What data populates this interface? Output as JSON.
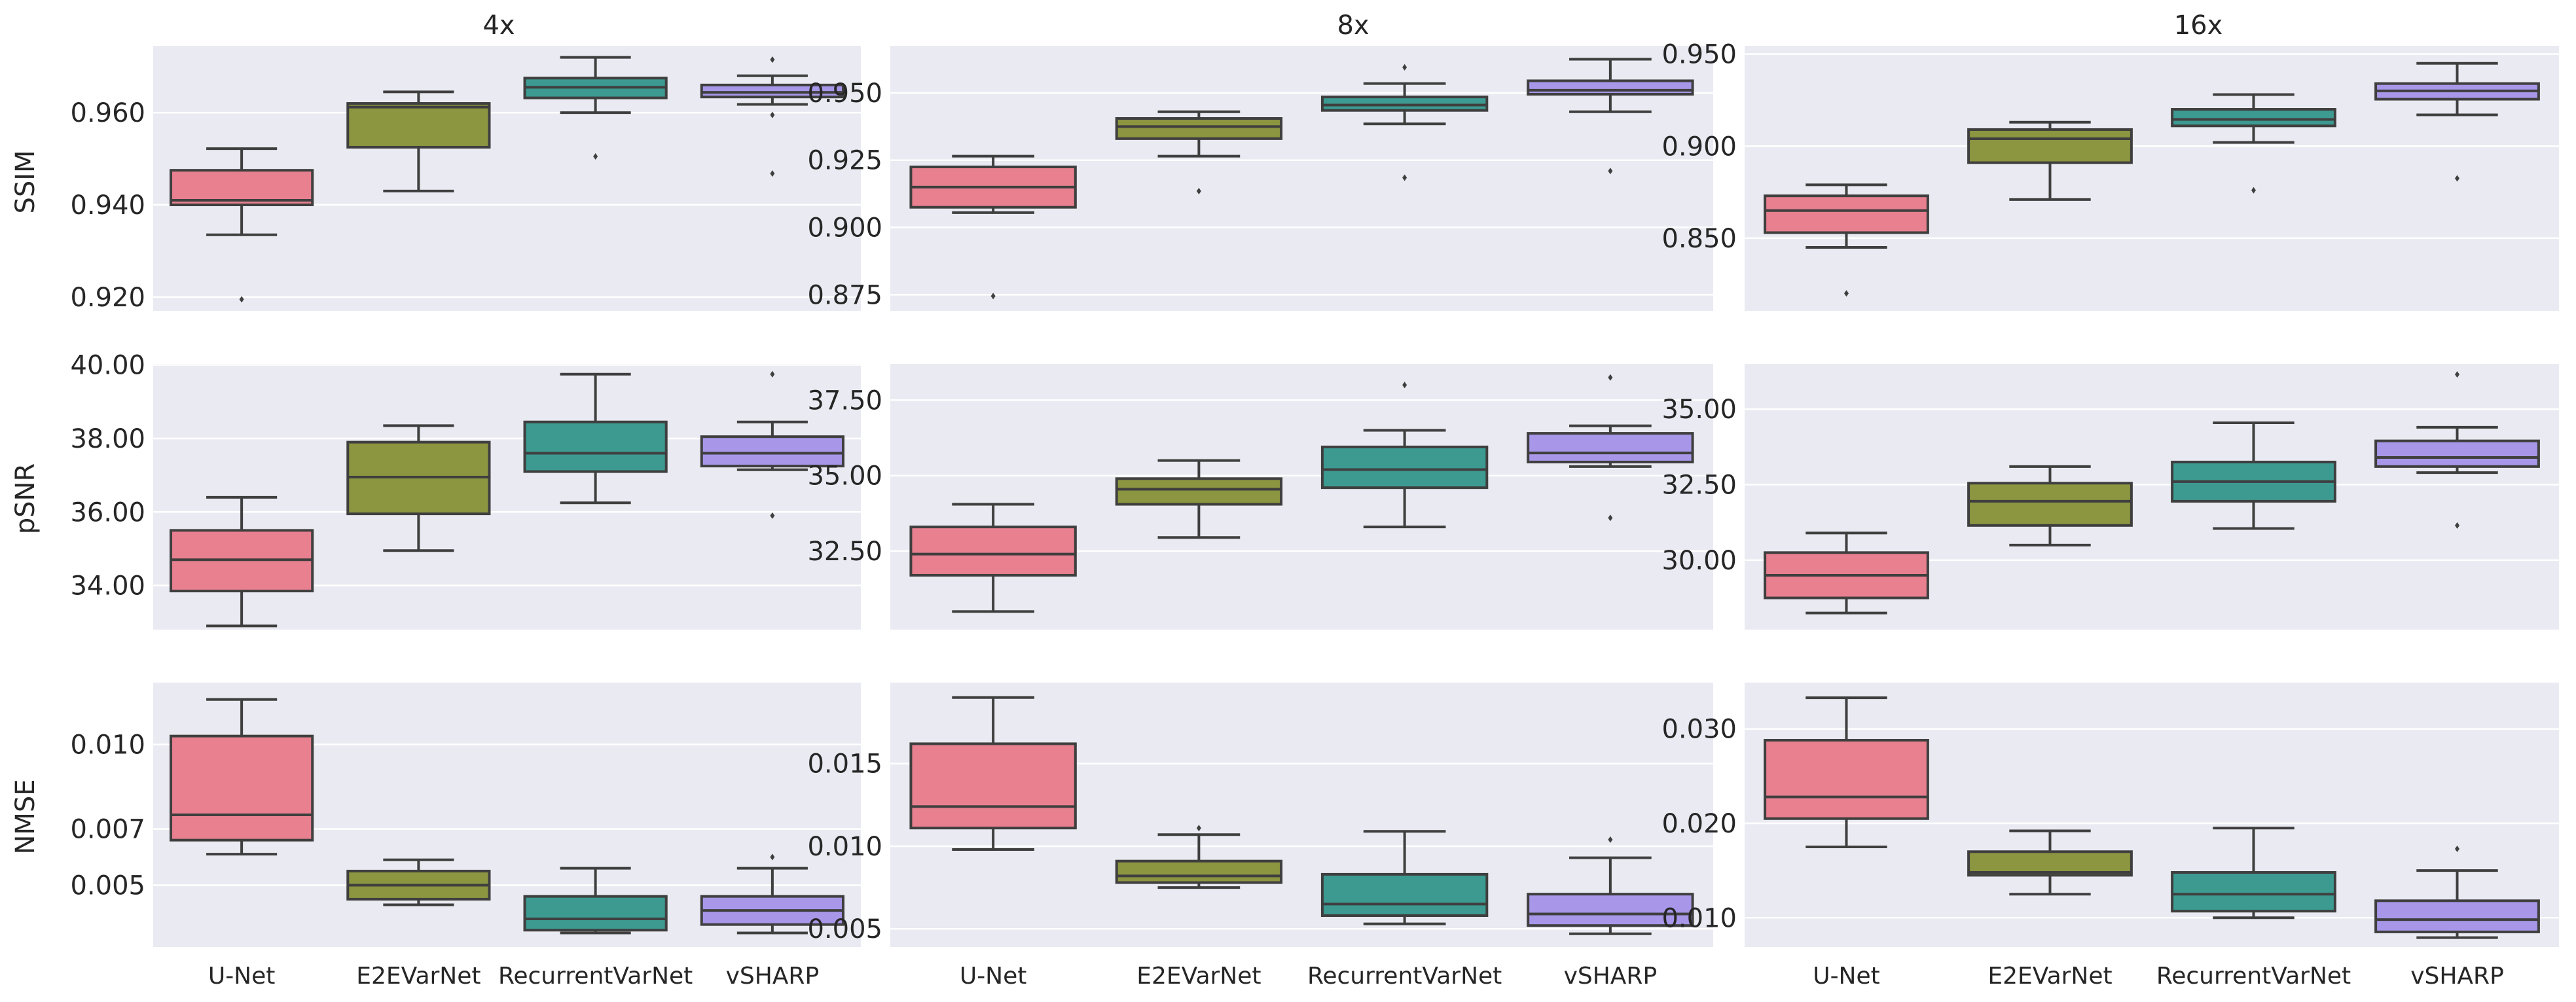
{
  "chart_data": {
    "type": "box",
    "categories": [
      "U-Net",
      "E2EVarNet",
      "RecurrentVarNet",
      "vSHARP"
    ],
    "colors": [
      "#E88090",
      "#8C9540",
      "#3C9A91",
      "#A897E8"
    ],
    "columns": [
      "4x",
      "8x",
      "16x"
    ],
    "rows": [
      "SSIM",
      "pSNR",
      "NMSE"
    ],
    "panels": [
      {
        "row": "SSIM",
        "column": "4x",
        "ylim": [
          0.917,
          0.9745
        ],
        "decimals": 3,
        "ticks": [
          0.92,
          0.94,
          0.96
        ],
        "boxes": [
          {
            "whislo": 0.9335,
            "q1": 0.94,
            "med": 0.941,
            "q3": 0.9475,
            "whishi": 0.9522,
            "fliers": [
              0.9195
            ]
          },
          {
            "whislo": 0.943,
            "q1": 0.9525,
            "med": 0.9612,
            "q3": 0.962,
            "whishi": 0.9645,
            "fliers": []
          },
          {
            "whislo": 0.96,
            "q1": 0.9632,
            "med": 0.9655,
            "q3": 0.9675,
            "whishi": 0.972,
            "fliers": [
              0.9505
            ]
          },
          {
            "whislo": 0.9618,
            "q1": 0.9634,
            "med": 0.9644,
            "q3": 0.966,
            "whishi": 0.968,
            "fliers": [
              0.9715,
              0.9595,
              0.9468
            ]
          }
        ]
      },
      {
        "row": "SSIM",
        "column": "8x",
        "ylim": [
          0.869,
          0.9675
        ],
        "decimals": 3,
        "ticks": [
          0.875,
          0.9,
          0.925,
          0.95
        ],
        "boxes": [
          {
            "whislo": 0.9055,
            "q1": 0.9075,
            "med": 0.915,
            "q3": 0.9225,
            "whishi": 0.9265,
            "fliers": [
              0.8745
            ]
          },
          {
            "whislo": 0.9265,
            "q1": 0.933,
            "med": 0.9375,
            "q3": 0.9405,
            "whishi": 0.943,
            "fliers": [
              0.9135
            ]
          },
          {
            "whislo": 0.9385,
            "q1": 0.9435,
            "med": 0.9455,
            "q3": 0.9485,
            "whishi": 0.9535,
            "fliers": [
              0.9595,
              0.9185
            ]
          },
          {
            "whislo": 0.943,
            "q1": 0.9495,
            "med": 0.951,
            "q3": 0.9545,
            "whishi": 0.9625,
            "fliers": [
              0.921
            ]
          }
        ]
      },
      {
        "row": "SSIM",
        "column": "16x",
        "ylim": [
          0.8105,
          0.9545
        ],
        "decimals": 3,
        "ticks": [
          0.85,
          0.9,
          0.95
        ],
        "boxes": [
          {
            "whislo": 0.845,
            "q1": 0.853,
            "med": 0.865,
            "q3": 0.873,
            "whishi": 0.879,
            "fliers": [
              0.82
            ]
          },
          {
            "whislo": 0.871,
            "q1": 0.891,
            "med": 0.904,
            "q3": 0.909,
            "whishi": 0.913,
            "fliers": []
          },
          {
            "whislo": 0.902,
            "q1": 0.911,
            "med": 0.9145,
            "q3": 0.92,
            "whishi": 0.928,
            "fliers": [
              0.876
            ]
          },
          {
            "whislo": 0.917,
            "q1": 0.9255,
            "med": 0.93,
            "q3": 0.934,
            "whishi": 0.945,
            "fliers": [
              0.8825
            ]
          }
        ]
      },
      {
        "row": "pSNR",
        "column": "4x",
        "ylim": [
          32.8,
          40.03
        ],
        "decimals": 2,
        "ticks": [
          34,
          36,
          38,
          40
        ],
        "boxes": [
          {
            "whislo": 32.9,
            "q1": 33.85,
            "med": 34.7,
            "q3": 35.5,
            "whishi": 36.4,
            "fliers": []
          },
          {
            "whislo": 34.95,
            "q1": 35.95,
            "med": 36.95,
            "q3": 37.9,
            "whishi": 38.35,
            "fliers": []
          },
          {
            "whislo": 36.25,
            "q1": 37.1,
            "med": 37.6,
            "q3": 38.45,
            "whishi": 39.75,
            "fliers": []
          },
          {
            "whislo": 37.15,
            "q1": 37.25,
            "med": 37.6,
            "q3": 38.05,
            "whishi": 38.45,
            "fliers": [
              39.75,
              35.9
            ]
          }
        ]
      },
      {
        "row": "pSNR",
        "column": "8x",
        "ylim": [
          29.9,
          38.7
        ],
        "decimals": 2,
        "ticks": [
          32.5,
          35.0,
          37.5
        ],
        "boxes": [
          {
            "whislo": 30.5,
            "q1": 31.7,
            "med": 32.4,
            "q3": 33.3,
            "whishi": 34.05,
            "fliers": []
          },
          {
            "whislo": 32.95,
            "q1": 34.05,
            "med": 34.55,
            "q3": 34.9,
            "whishi": 35.5,
            "fliers": []
          },
          {
            "whislo": 33.3,
            "q1": 34.6,
            "med": 35.2,
            "q3": 35.95,
            "whishi": 36.5,
            "fliers": [
              38.0
            ]
          },
          {
            "whislo": 35.3,
            "q1": 35.45,
            "med": 35.75,
            "q3": 36.4,
            "whishi": 36.65,
            "fliers": [
              38.25,
              33.6
            ]
          }
        ]
      },
      {
        "row": "pSNR",
        "column": "16x",
        "ylim": [
          27.7,
          36.5
        ],
        "decimals": 2,
        "ticks": [
          30.0,
          32.5,
          35.0
        ],
        "boxes": [
          {
            "whislo": 28.25,
            "q1": 28.75,
            "med": 29.5,
            "q3": 30.25,
            "whishi": 30.9,
            "fliers": []
          },
          {
            "whislo": 30.5,
            "q1": 31.15,
            "med": 31.95,
            "q3": 32.55,
            "whishi": 33.1,
            "fliers": []
          },
          {
            "whislo": 31.05,
            "q1": 31.95,
            "med": 32.6,
            "q3": 33.25,
            "whishi": 34.55,
            "fliers": []
          },
          {
            "whislo": 32.9,
            "q1": 33.1,
            "med": 33.4,
            "q3": 33.95,
            "whishi": 34.4,
            "fliers": [
              36.15,
              31.15
            ]
          }
        ]
      },
      {
        "row": "NMSE",
        "column": "4x",
        "ylim": [
          0.0028,
          0.0122
        ],
        "decimals": 3,
        "ticks": [
          0.005,
          0.007,
          0.01
        ],
        "tick_labels": [
          "0.005",
          "0.007",
          "0.010"
        ],
        "boxes": [
          {
            "whislo": 0.0061,
            "q1": 0.0066,
            "med": 0.0075,
            "q3": 0.0103,
            "whishi": 0.0116,
            "fliers": []
          },
          {
            "whislo": 0.0043,
            "q1": 0.0045,
            "med": 0.005,
            "q3": 0.0055,
            "whishi": 0.0059,
            "fliers": []
          },
          {
            "whislo": 0.0033,
            "q1": 0.0034,
            "med": 0.0038,
            "q3": 0.0046,
            "whishi": 0.0056,
            "fliers": []
          },
          {
            "whislo": 0.0033,
            "q1": 0.0036,
            "med": 0.0041,
            "q3": 0.0046,
            "whishi": 0.0056,
            "fliers": [
              0.006
            ]
          }
        ]
      },
      {
        "row": "NMSE",
        "column": "8x",
        "ylim": [
          0.0039,
          0.0199
        ],
        "decimals": 3,
        "ticks": [
          0.005,
          0.01,
          0.015
        ],
        "tick_labels": [
          "0.005",
          "0.010",
          "0.015"
        ],
        "boxes": [
          {
            "whislo": 0.0098,
            "q1": 0.0111,
            "med": 0.0124,
            "q3": 0.0162,
            "whishi": 0.019,
            "fliers": []
          },
          {
            "whislo": 0.0075,
            "q1": 0.0078,
            "med": 0.0082,
            "q3": 0.0091,
            "whishi": 0.0107,
            "fliers": [
              0.0111
            ]
          },
          {
            "whislo": 0.0053,
            "q1": 0.0058,
            "med": 0.0065,
            "q3": 0.0083,
            "whishi": 0.0109,
            "fliers": []
          },
          {
            "whislo": 0.0047,
            "q1": 0.0052,
            "med": 0.0059,
            "q3": 0.0071,
            "whishi": 0.0093,
            "fliers": [
              0.0104
            ]
          }
        ]
      },
      {
        "row": "NMSE",
        "column": "16x",
        "ylim": [
          0.0069,
          0.0349
        ],
        "decimals": 3,
        "ticks": [
          0.01,
          0.02,
          0.03
        ],
        "tick_labels": [
          "0.010",
          "0.020",
          "0.030"
        ],
        "boxes": [
          {
            "whislo": 0.0175,
            "q1": 0.0205,
            "med": 0.0228,
            "q3": 0.0288,
            "whishi": 0.0333,
            "fliers": []
          },
          {
            "whislo": 0.0125,
            "q1": 0.0145,
            "med": 0.0148,
            "q3": 0.017,
            "whishi": 0.0192,
            "fliers": []
          },
          {
            "whislo": 0.01,
            "q1": 0.0107,
            "med": 0.0125,
            "q3": 0.0148,
            "whishi": 0.0195,
            "fliers": []
          },
          {
            "whislo": 0.0079,
            "q1": 0.0085,
            "med": 0.0098,
            "q3": 0.0118,
            "whishi": 0.015,
            "fliers": [
              0.0173
            ]
          }
        ]
      }
    ]
  }
}
